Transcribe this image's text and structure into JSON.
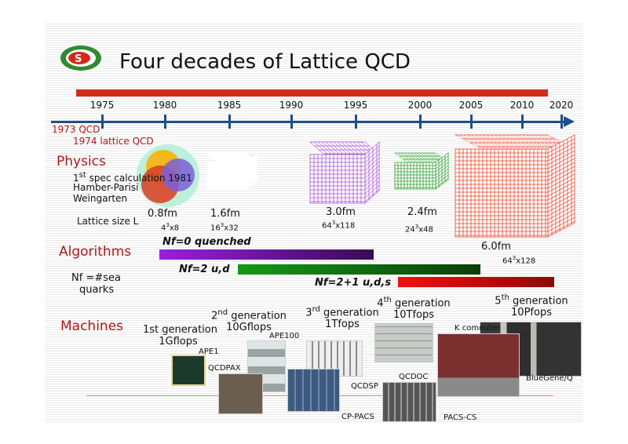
{
  "title": "Four decades of Lattice QCD",
  "timeline": {
    "years": [
      "1975",
      "1980",
      "1985",
      "1990",
      "1995",
      "2000",
      "2005",
      "2010",
      "2020"
    ],
    "notes": [
      "1973 QCD",
      "1974 lattice QCD"
    ],
    "axis_color": "#1f4e8a",
    "bar_color": "#d42a1a"
  },
  "physics": {
    "heading": "Physics",
    "first_line": "1",
    "first_sup": "st",
    "first_rest": " spec calculation 1981",
    "authors1": "Hamber-Parisi",
    "authors2": "Weingarten",
    "lattice_label": "Lattice size L",
    "lattices": [
      {
        "size": "0.8fm",
        "dim_base": "4",
        "dim_rest": "x8"
      },
      {
        "size": "1.6fm",
        "dim_base": "16",
        "dim_rest": "x32",
        "color": "#a64cd6"
      },
      {
        "size": "3.0fm",
        "dim_base": "64",
        "dim_rest": "x118",
        "color": "#a64cd6"
      },
      {
        "size": "2.4fm",
        "dim_base": "24",
        "dim_rest": "x48",
        "color": "#2e9e2e"
      },
      {
        "size": "6.0fm",
        "dim_base": "64",
        "dim_rest": "x128",
        "color": "#e8442a"
      }
    ]
  },
  "algorithms": {
    "heading": "Algorithms",
    "nf_label1": "Nf =#sea",
    "nf_label2": "quarks",
    "bars": [
      {
        "label": "Nf=0 quenched",
        "color": "#8a1ec8"
      },
      {
        "label": "Nf=2 u,d",
        "color": "#138a13"
      },
      {
        "label": "Nf=2+1 u,d,s",
        "color": "#e01010"
      }
    ]
  },
  "machines": {
    "heading": "Machines",
    "generations": [
      {
        "n": "1st generation",
        "sup": "",
        "speed": "1Gflops"
      },
      {
        "n": "2",
        "sup": "nd",
        "rest": " generation",
        "speed": "10Gflops"
      },
      {
        "n": "3",
        "sup": "rd",
        "rest": " generation",
        "speed": "1Tfops"
      },
      {
        "n": "4",
        "sup": "th",
        "rest": " generation",
        "speed": "10Tfops"
      },
      {
        "n": "5",
        "sup": "th",
        "rest": " generation",
        "speed": "10Pfops"
      }
    ],
    "names": [
      "APE1",
      "QCDPAX",
      "APE100",
      "CP-PACS",
      "QCDSP",
      "QCDOC",
      "PACS-CS",
      "K comouter",
      "BlueGene/Q"
    ]
  }
}
